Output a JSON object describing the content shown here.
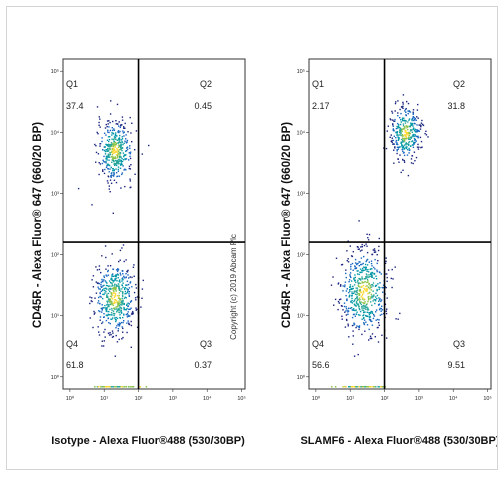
{
  "copyright": "Copyright (c) 2019 Abcam Plc",
  "chart_data": [
    {
      "type": "scatter",
      "name": "isotype-plot",
      "ylabel": "CD45R - Alexa Fluor® 647 (660/20 BP)",
      "xlabel": "Isotype - Alexa Fluor®488 (530/30BP)",
      "x_scale": "log",
      "y_scale": "log",
      "x_ticks": [
        "10⁰",
        "10¹",
        "10²",
        "10³",
        "10⁴",
        "10⁵"
      ],
      "y_ticks": [
        "10⁰",
        "10¹",
        "10²",
        "10³",
        "10⁴",
        "10⁵"
      ],
      "quadrants": [
        {
          "id": "Q1",
          "value": "37.4"
        },
        {
          "id": "Q2",
          "value": "0.45"
        },
        {
          "id": "Q3",
          "value": "0.37"
        },
        {
          "id": "Q4",
          "value": "61.8"
        }
      ],
      "gate": {
        "x": 100,
        "y": 160
      },
      "populations": [
        {
          "x": 20,
          "y": 5000,
          "spread": 0.25,
          "count": 420
        },
        {
          "x": 20,
          "y": 20,
          "spread": 0.3,
          "count": 520
        }
      ]
    },
    {
      "type": "scatter",
      "name": "slamf6-plot",
      "ylabel": "CD45R - Alexa Fluor® 647 (660/20 BP)",
      "xlabel": "SLAMF6 - Alexa Fluor®488 (530/30BP)",
      "x_scale": "log",
      "y_scale": "log",
      "x_ticks": [
        "10⁰",
        "10¹",
        "10²",
        "10³",
        "10⁴",
        "10⁵"
      ],
      "y_ticks": [
        "10⁰",
        "10¹",
        "10²",
        "10³",
        "10⁴",
        "10⁵"
      ],
      "quadrants": [
        {
          "id": "Q1",
          "value": "2.17"
        },
        {
          "id": "Q2",
          "value": "31.8"
        },
        {
          "id": "Q3",
          "value": "9.51"
        },
        {
          "id": "Q4",
          "value": "56.6"
        }
      ],
      "gate": {
        "x": 100,
        "y": 160
      },
      "populations": [
        {
          "x": 400,
          "y": 10000,
          "spread": 0.22,
          "count": 360
        },
        {
          "x": 25,
          "y": 25,
          "spread": 0.35,
          "count": 560
        }
      ]
    }
  ]
}
